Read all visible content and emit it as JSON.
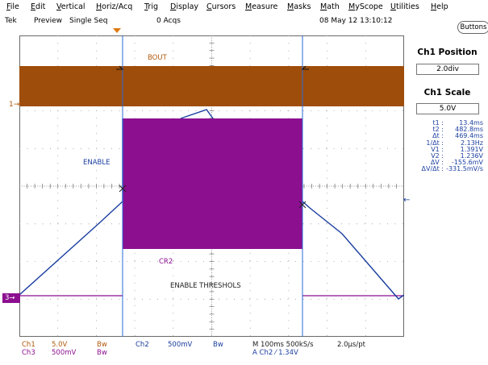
{
  "menu": {
    "items": [
      "File",
      "Edit",
      "Vertical",
      "Horiz/Acq",
      "Trig",
      "Display",
      "Cursors",
      "Measure",
      "Masks",
      "Math",
      "MyScope",
      "Utilities",
      "Help"
    ]
  },
  "status": {
    "tek": "Tek",
    "preview": "Preview",
    "mode": "Single Seq",
    "acqs": "0 Acqs",
    "datetime": "08 May 12 13:10:12"
  },
  "right_panel": {
    "buttons_label": "Buttons",
    "ch1_position_title": "Ch1 Position",
    "ch1_position_value": "2.0div",
    "ch1_scale_title": "Ch1 Scale",
    "ch1_scale_value": "5.0V",
    "cursor_readout": [
      {
        "label": "t1 :",
        "value": "13.4ms"
      },
      {
        "label": "t2 :",
        "value": "482.8ms"
      },
      {
        "label": "Δt :",
        "value": "469.4ms"
      },
      {
        "label": "1/Δt :",
        "value": "2.13Hz"
      },
      {
        "label": "V1 :",
        "value": "1.391V"
      },
      {
        "label": "V2 :",
        "value": "1.236V"
      },
      {
        "label": "ΔV :",
        "value": "-155.6mV"
      },
      {
        "label": "ΔV/Δt :",
        "value": "-331.5mV/s"
      }
    ]
  },
  "waveforms": {
    "bout_label": "BOUT",
    "enable_label": "ENABLE",
    "cr2_label": "CR2",
    "threshold_label": "ENABLE THRESHOLS",
    "ch1_marker": "1",
    "ch3_marker": "3"
  },
  "bottom": {
    "ch1_name": "Ch1",
    "ch1_scale": "5.0V",
    "ch1_bw": "Bw",
    "ch3_name": "Ch3",
    "ch3_scale": "500mV",
    "ch3_bw": "Bw",
    "ch2_name": "Ch2",
    "ch2_scale": "500mV",
    "ch2_bw": "Bw",
    "timebase": "M 100ms 500kS/s",
    "sample_interval": "2.0μs/pt",
    "trigger": "A  Ch2  ⁄  1.34V"
  },
  "colors": {
    "ch1": "#a0500c",
    "ch2": "#1a3ea0",
    "ch3": "#8c0f90",
    "cursor": "#2a6ad8"
  }
}
